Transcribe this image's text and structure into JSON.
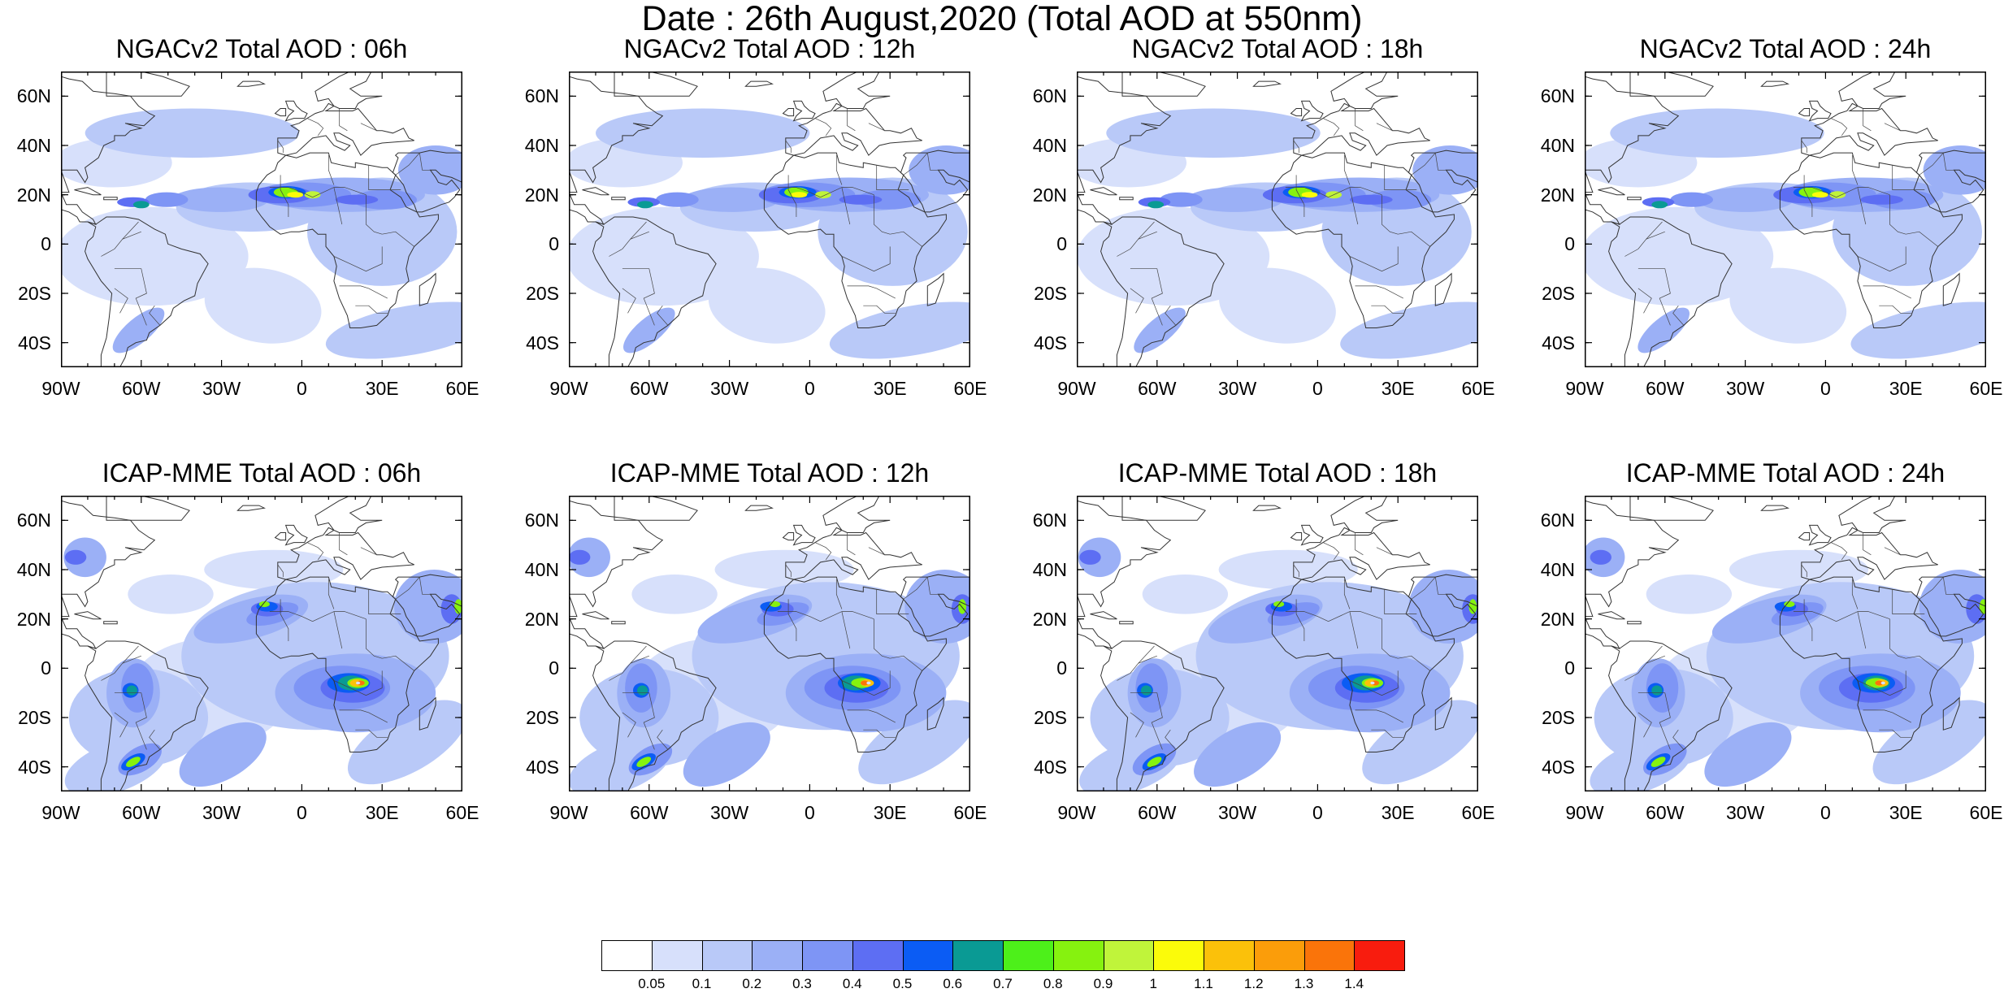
{
  "title": "Date : 26th August,2020 (Total AOD at 550nm)",
  "panels": [
    {
      "title": "NGACv2 Total AOD : 06h",
      "model": "ngac"
    },
    {
      "title": "NGACv2 Total AOD : 12h",
      "model": "ngac"
    },
    {
      "title": "NGACv2 Total AOD : 18h",
      "model": "ngac"
    },
    {
      "title": "NGACv2 Total AOD : 24h",
      "model": "ngac"
    },
    {
      "title": "ICAP-MME Total AOD : 06h",
      "model": "icap"
    },
    {
      "title": "ICAP-MME Total AOD : 12h",
      "model": "icap"
    },
    {
      "title": "ICAP-MME Total AOD : 18h",
      "model": "icap"
    },
    {
      "title": "ICAP-MME Total AOD : 24h",
      "model": "icap"
    }
  ],
  "axes": {
    "lon_range": [
      -90,
      60
    ],
    "lat_range": [
      -50,
      70
    ],
    "lon_ticks": [
      {
        "value": -90,
        "label": "90W"
      },
      {
        "value": -60,
        "label": "60W"
      },
      {
        "value": -30,
        "label": "30W"
      },
      {
        "value": 0,
        "label": "0"
      },
      {
        "value": 30,
        "label": "30E"
      },
      {
        "value": 60,
        "label": "60E"
      }
    ],
    "lat_ticks": [
      {
        "value": 60,
        "label": "60N"
      },
      {
        "value": 40,
        "label": "40N"
      },
      {
        "value": 20,
        "label": "20N"
      },
      {
        "value": 0,
        "label": "0"
      },
      {
        "value": -20,
        "label": "20S"
      },
      {
        "value": -40,
        "label": "40S"
      }
    ]
  },
  "colorbar": {
    "colors": [
      "#ffffff",
      "#d7e0fb",
      "#b9c9f8",
      "#9bb0f6",
      "#7e95f5",
      "#5d6ef3",
      "#0b5cf4",
      "#0a9a94",
      "#4df01a",
      "#86f20f",
      "#c0f43a",
      "#fbfb0a",
      "#fbc10a",
      "#fb9d0a",
      "#fa740a",
      "#f81c0e"
    ],
    "labels": [
      "0.05",
      "0.1",
      "0.2",
      "0.3",
      "0.4",
      "0.5",
      "0.6",
      "0.7",
      "0.8",
      "0.9",
      "1",
      "1.1",
      "1.2",
      "1.3",
      "1.4"
    ]
  }
}
